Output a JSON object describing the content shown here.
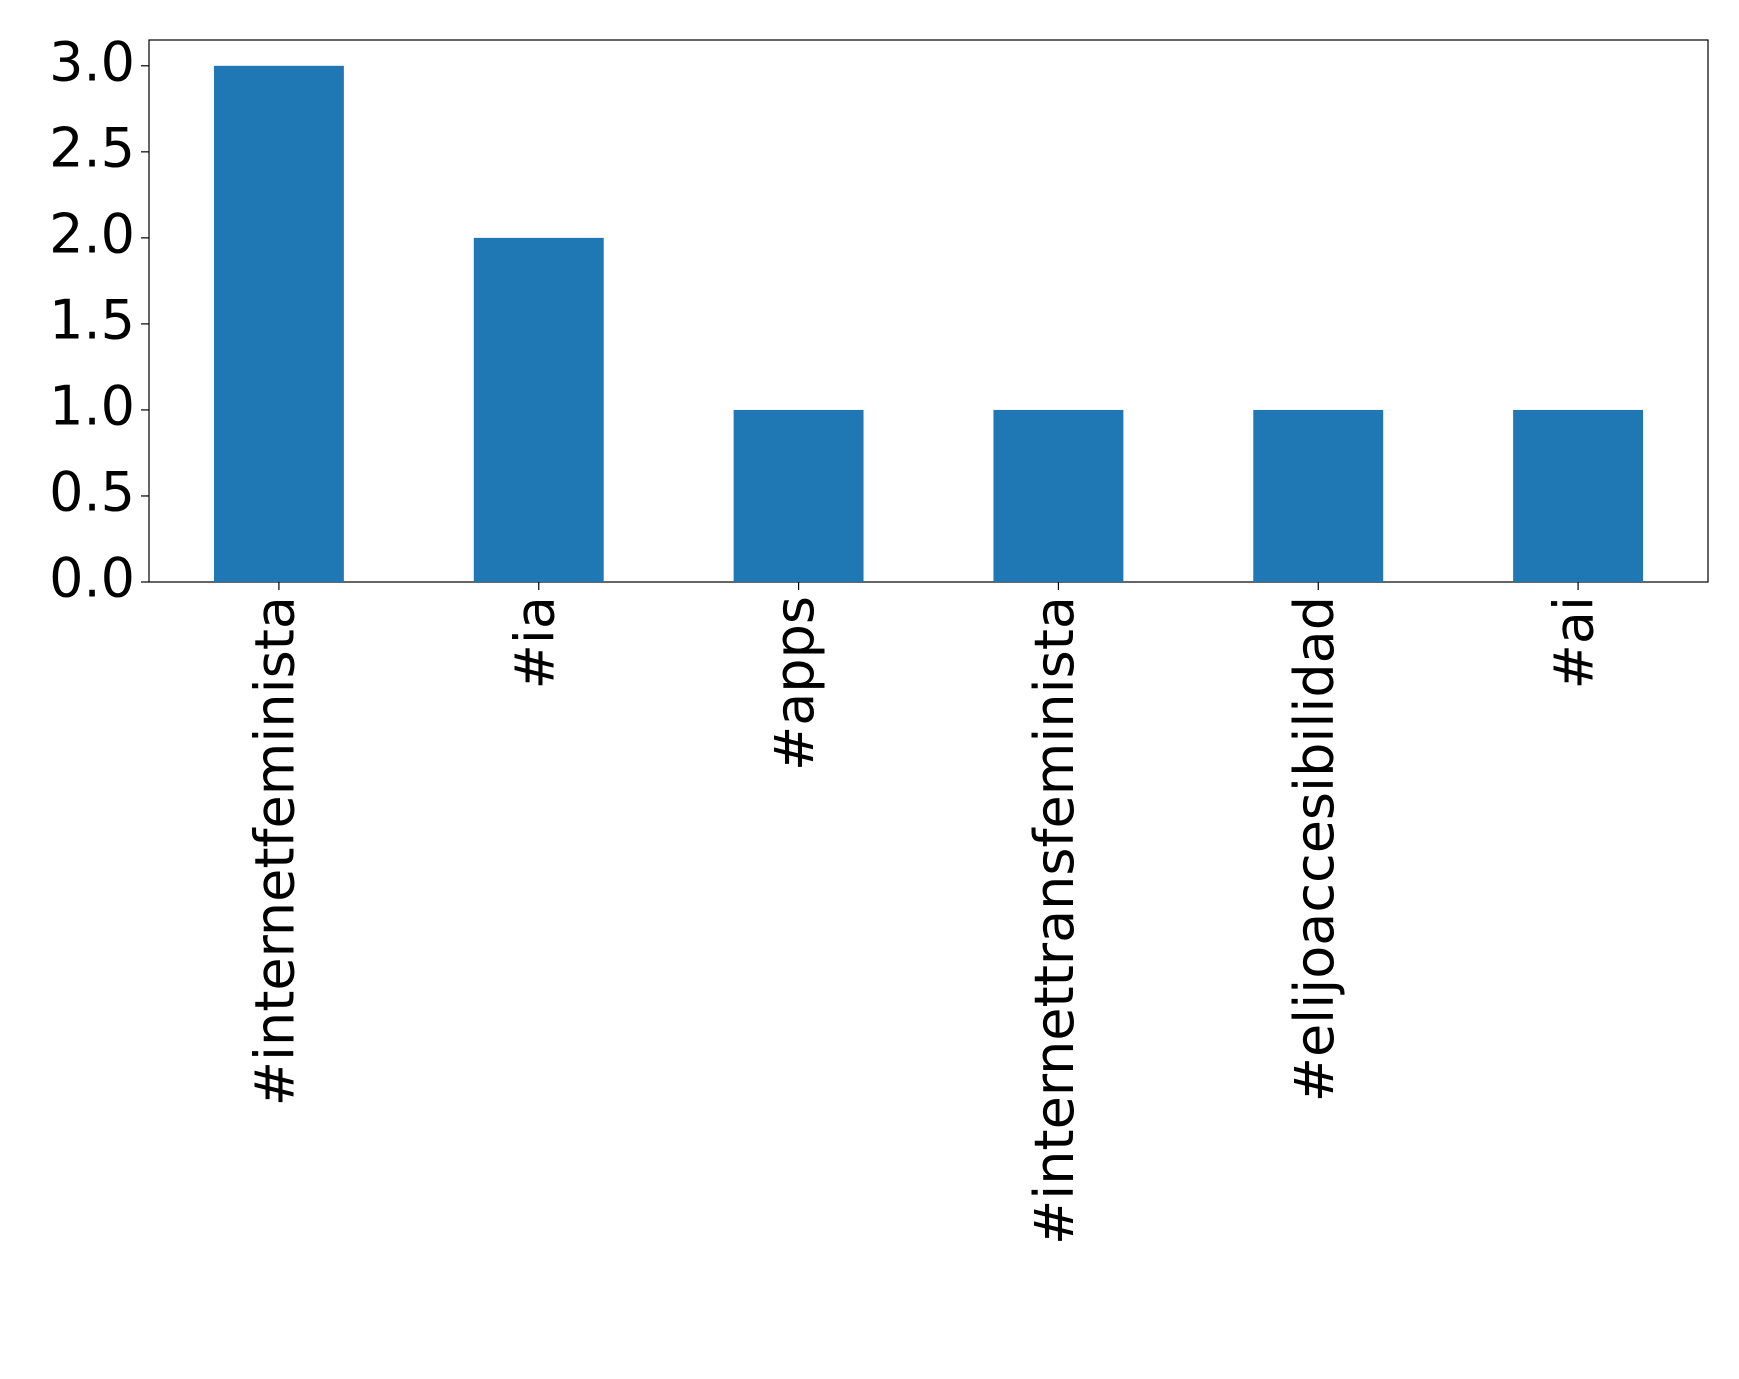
{
  "chart_data": {
    "type": "bar",
    "categories": [
      "#internetfeminista",
      "#ia",
      "#apps",
      "#internettransfeminista",
      "#elijoaccesibilidad",
      "#ai"
    ],
    "values": [
      3,
      2,
      1,
      1,
      1,
      1
    ],
    "color": "#1f77b4",
    "ylim": [
      0,
      3.15
    ],
    "yticks": [
      {
        "value": 0,
        "label": "0.0"
      },
      {
        "value": 0.5,
        "label": "0.5"
      },
      {
        "value": 1,
        "label": "1.0"
      },
      {
        "value": 1.5,
        "label": "1.5"
      },
      {
        "value": 2,
        "label": "2.0"
      },
      {
        "value": 2.5,
        "label": "2.5"
      },
      {
        "value": 3,
        "label": "3.0"
      }
    ],
    "grid": false
  }
}
